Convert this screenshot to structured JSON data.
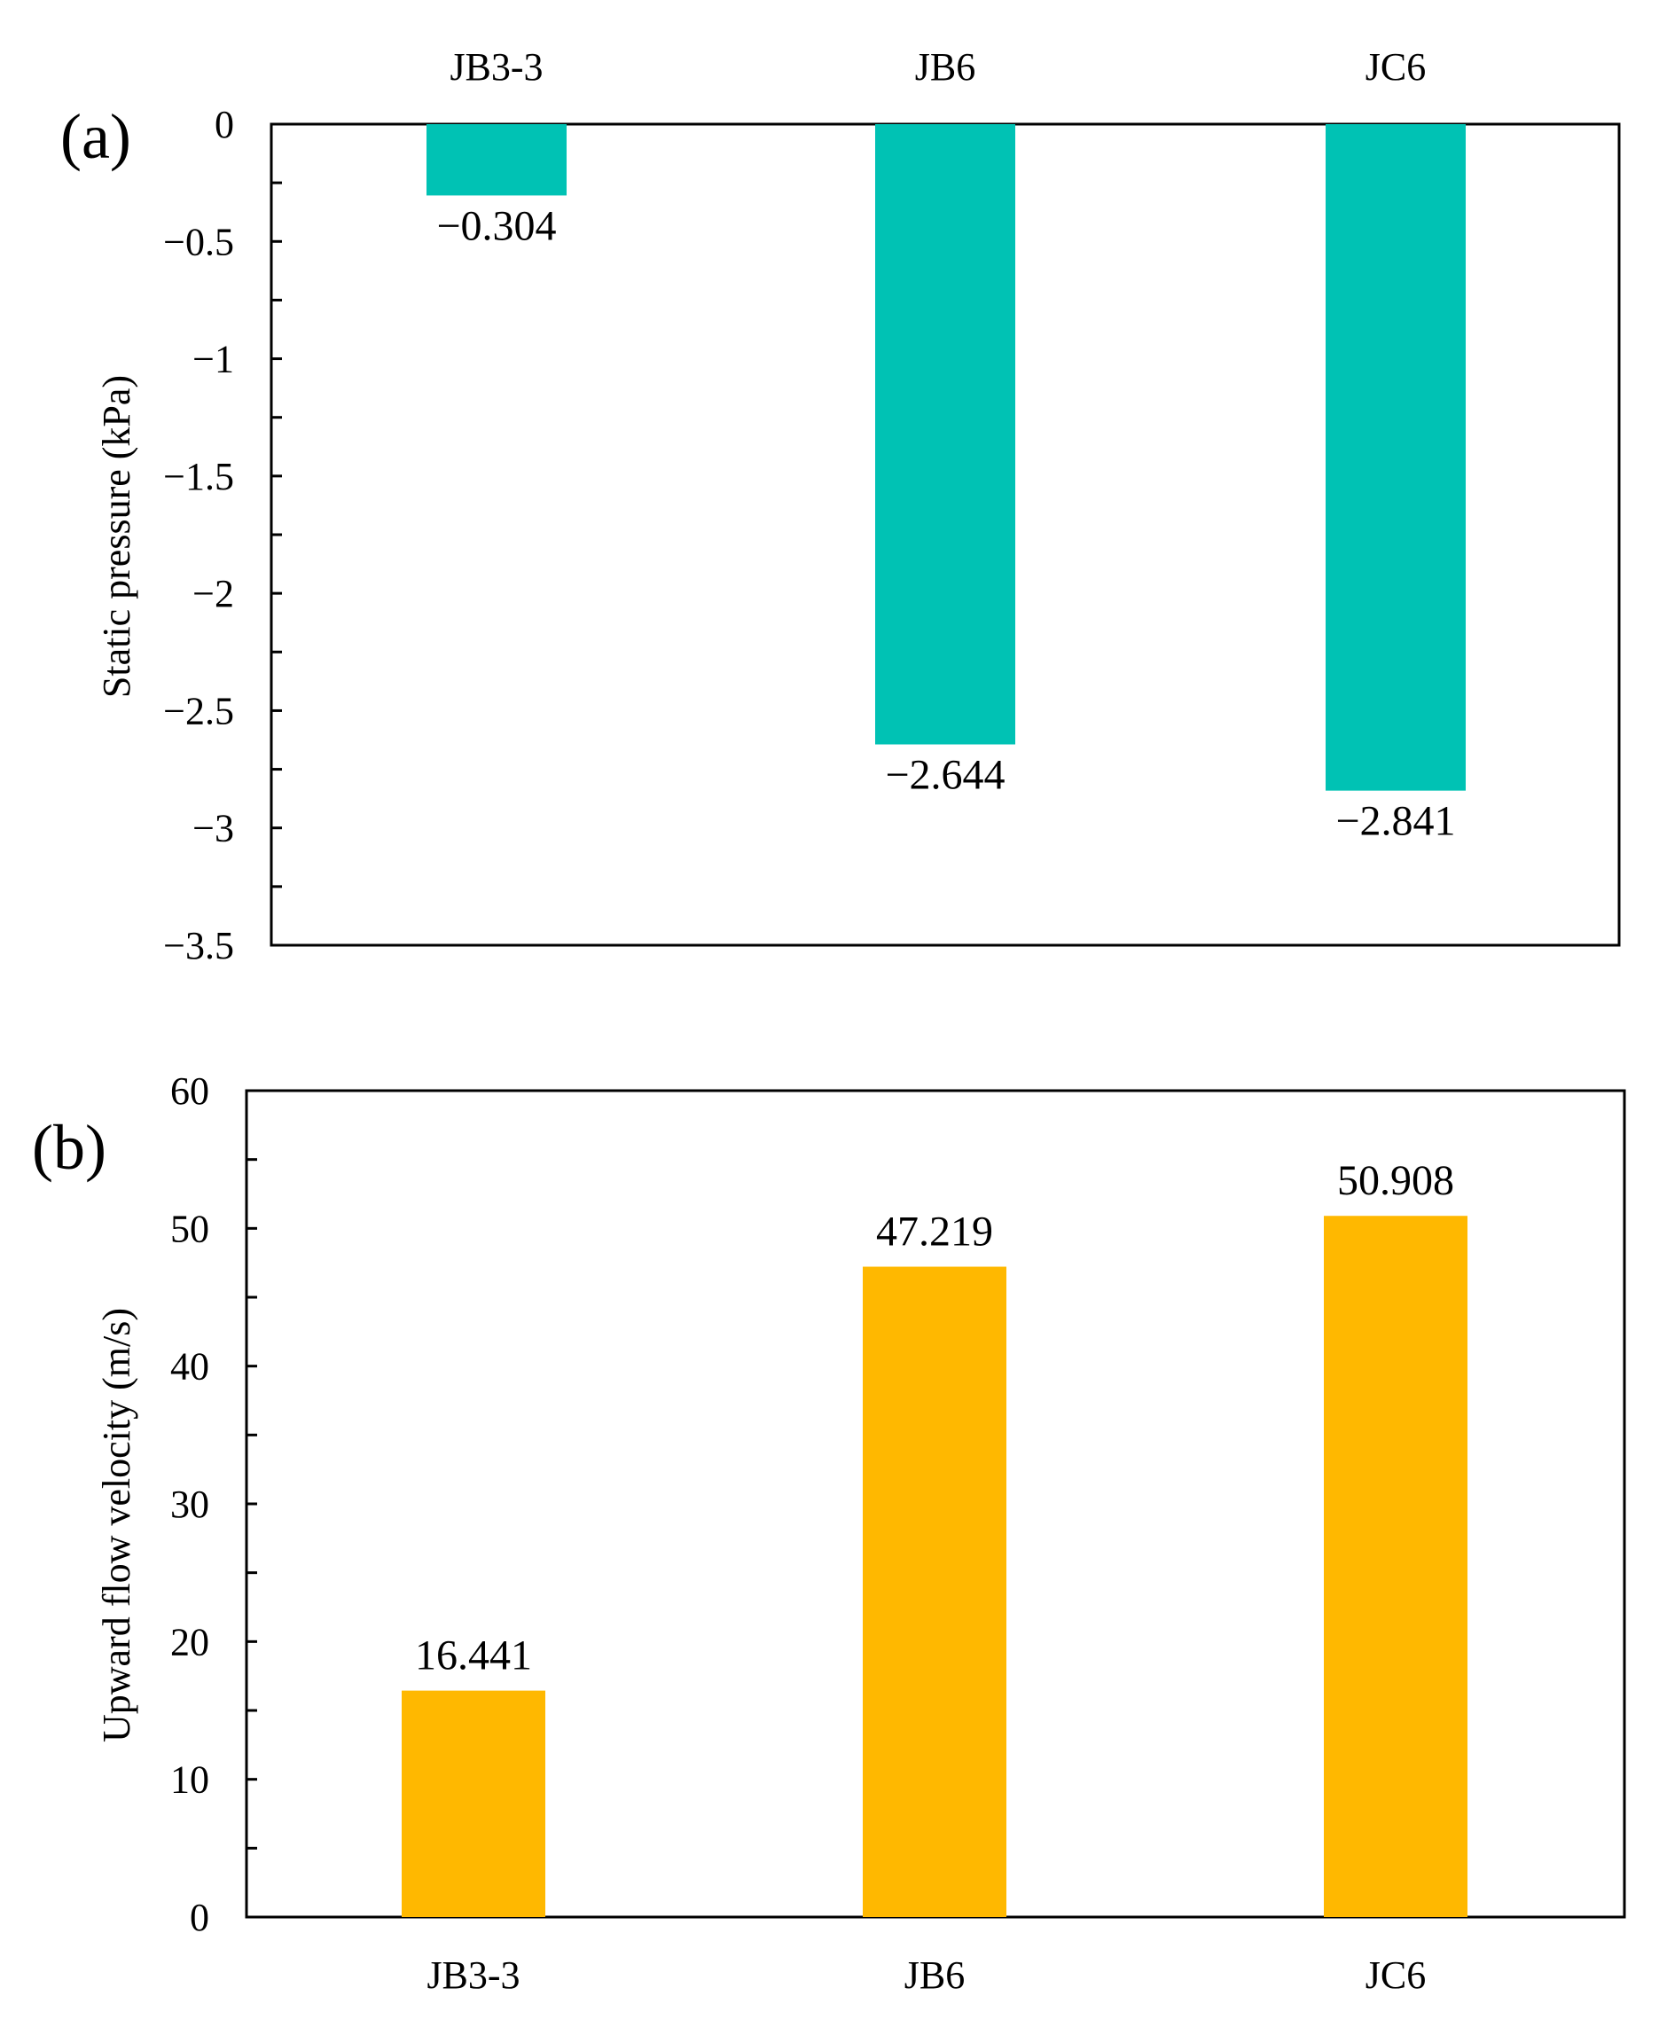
{
  "chart_data": [
    {
      "panel": "(a)",
      "type": "bar",
      "categories": [
        "JB3-3",
        "JB6",
        "JC6"
      ],
      "values": [
        -0.304,
        -2.644,
        -2.841
      ],
      "data_labels": [
        "−0.304",
        "−2.644",
        "−2.841"
      ],
      "title": "",
      "xlabel": "",
      "ylabel": "Static pressure (kPa)",
      "ylim": [
        -3.5,
        0
      ],
      "yticks": [
        0,
        -0.5,
        -1,
        -1.5,
        -2,
        -2.5,
        -3,
        -3.5
      ],
      "ytick_labels": [
        "0",
        "−0.5",
        "−1",
        "−1.5",
        "−2",
        "−2.5",
        "−3",
        "−3.5"
      ],
      "category_axis_position": "top",
      "grid": false,
      "bar_color": "#00c2b4"
    },
    {
      "panel": "(b)",
      "type": "bar",
      "categories": [
        "JB3-3",
        "JB6",
        "JC6"
      ],
      "values": [
        16.441,
        47.219,
        50.908
      ],
      "data_labels": [
        "16.441",
        "47.219",
        "50.908"
      ],
      "title": "",
      "xlabel": "",
      "ylabel": "Upward flow velocity (m/s)",
      "ylim": [
        0,
        60
      ],
      "yticks": [
        0,
        10,
        20,
        30,
        40,
        50,
        60
      ],
      "ytick_labels": [
        "0",
        "10",
        "20",
        "30",
        "40",
        "50",
        "60"
      ],
      "category_axis_position": "bottom",
      "grid": false,
      "bar_color": "#ffb800"
    }
  ]
}
